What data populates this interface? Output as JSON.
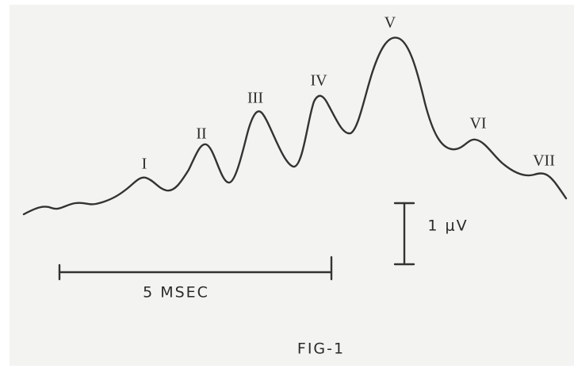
{
  "peaks": [
    "I",
    "II",
    "III",
    "IV",
    "V",
    "VI",
    "VII"
  ],
  "scale_bars": {
    "amplitude": "1 μV",
    "time": "5 MSEC"
  },
  "caption": "FIG-1"
}
